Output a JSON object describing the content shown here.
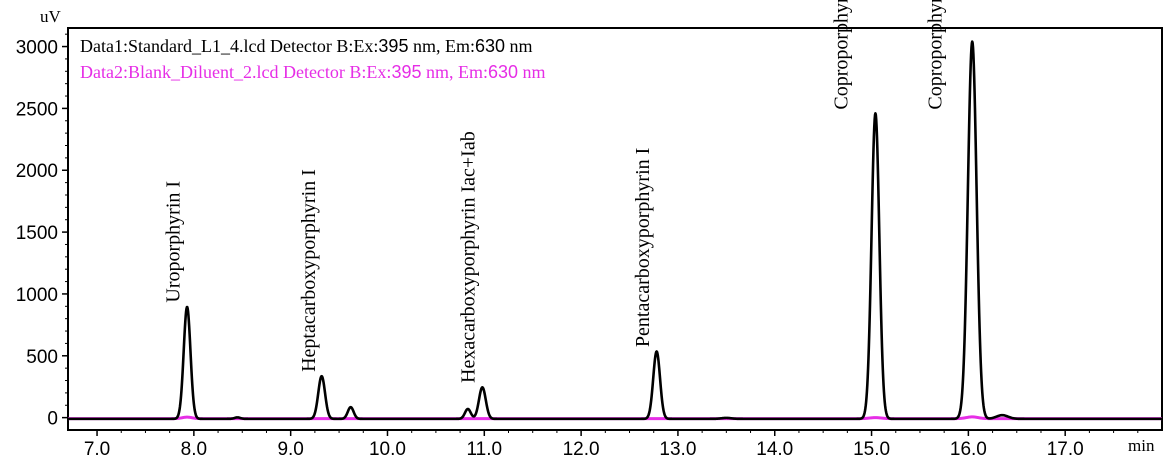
{
  "chart_data": {
    "type": "line",
    "title": "",
    "xlabel": "min",
    "ylabel": "uV",
    "xlim": [
      6.7,
      18.0
    ],
    "ylim": [
      -100,
      3150
    ],
    "x_ticks": [
      7.0,
      8.0,
      9.0,
      10.0,
      11.0,
      12.0,
      13.0,
      14.0,
      15.0,
      16.0,
      17.0
    ],
    "y_ticks": [
      0,
      500,
      1000,
      1500,
      2000,
      2500,
      3000
    ],
    "grid": false,
    "legend_position": "top-left",
    "series": [
      {
        "name": "Data1:Standard_L1_4.lcd Detector B:Ex:395 nm, Em:630 nm",
        "legend_parts": {
          "a": "Data1:Standard_L1_4.lcd Detector B:Ex:",
          "b": "395",
          "c": " nm, Em:",
          "d": "630",
          "e": " nm"
        },
        "color": "#000000",
        "baseline": -10,
        "peaks": [
          {
            "rt": 7.93,
            "height": 905,
            "sigma": 0.035
          },
          {
            "rt": 8.45,
            "height": 12,
            "sigma": 0.03
          },
          {
            "rt": 9.32,
            "height": 345,
            "sigma": 0.035
          },
          {
            "rt": 9.62,
            "height": 95,
            "sigma": 0.03
          },
          {
            "rt": 10.83,
            "height": 80,
            "sigma": 0.03
          },
          {
            "rt": 10.98,
            "height": 255,
            "sigma": 0.035
          },
          {
            "rt": 12.78,
            "height": 545,
            "sigma": 0.035
          },
          {
            "rt": 13.5,
            "height": 8,
            "sigma": 0.05
          },
          {
            "rt": 15.04,
            "height": 2470,
            "sigma": 0.04
          },
          {
            "rt": 16.04,
            "height": 3050,
            "sigma": 0.045
          },
          {
            "rt": 16.35,
            "height": 30,
            "sigma": 0.06
          }
        ]
      },
      {
        "name": "Data2:Blank_Diluent_2.lcd Detector B:Ex:395 nm, Em:630 nm",
        "legend_parts": {
          "a": "Data2:Blank_Diluent_2.lcd Detector B:Ex:",
          "b": "395",
          "c": " nm, Em:",
          "d": "630",
          "e": " nm"
        },
        "color": "#e62ee6",
        "baseline": -8,
        "peaks": [
          {
            "rt": 7.93,
            "height": 12,
            "sigma": 0.05
          },
          {
            "rt": 15.04,
            "height": 8,
            "sigma": 0.06
          },
          {
            "rt": 16.04,
            "height": 14,
            "sigma": 0.06
          }
        ]
      }
    ],
    "annotations": [
      {
        "text": "Uroporphyrin I",
        "x": 7.85,
        "y": 930
      },
      {
        "text": "Heptacarboxyporphyrin I",
        "x": 9.25,
        "y": 370
      },
      {
        "text": "Hexacarboxyporphyrin Iac+Iab",
        "x": 10.9,
        "y": 280
      },
      {
        "text": "Pentacarboxyporphyrin I",
        "x": 12.7,
        "y": 570
      },
      {
        "text": "Coproporphyrin I",
        "x": 14.75,
        "y": 2490
      },
      {
        "text": "Coproporphyrin III",
        "x": 15.72,
        "y": 2490
      }
    ]
  }
}
